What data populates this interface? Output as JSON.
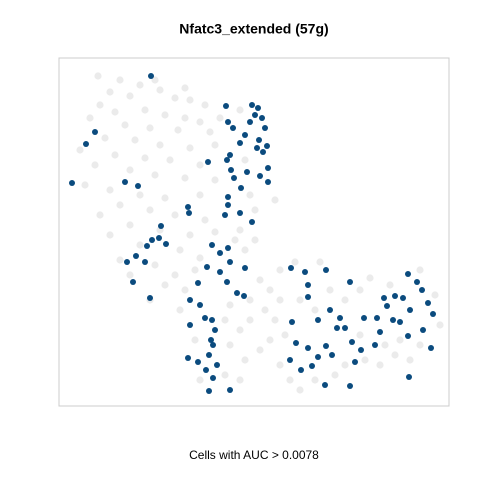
{
  "chart_data": {
    "type": "scatter",
    "title": "Nfatc3_extended (57g)",
    "x_label": "Cells with AUC > 0.0078",
    "xlim": [
      59,
      449
    ],
    "ylim": [
      406,
      58
    ],
    "series": [
      {
        "color": "#e6e6e6",
        "x": [
          98,
          120,
          140,
          110,
          130,
          160,
          175,
          190,
          205,
          100,
          115,
          145,
          165,
          185,
          200,
          90,
          125,
          150,
          178,
          210,
          105,
          135,
          160,
          190,
          215,
          80,
          115,
          145,
          170,
          200,
          95,
          130,
          155,
          185,
          215,
          85,
          110,
          140,
          165,
          200,
          120,
          150,
          175,
          205,
          100,
          130,
          160,
          190,
          215,
          110,
          140,
          180,
          200,
          120,
          155,
          175,
          195,
          240,
          245,
          255,
          235,
          165,
          185,
          230,
          250,
          260,
          270,
          280,
          265,
          250,
          275,
          285,
          240,
          230,
          245,
          260,
          270,
          290,
          280,
          300,
          315,
          335,
          345,
          365,
          380,
          395,
          410,
          420,
          400,
          385,
          360,
          345,
          330,
          360,
          370,
          390,
          420,
          435,
          440,
          300,
          315,
          280,
          295,
          320,
          240,
          225,
          200,
          195,
          225,
          180,
          250,
          255,
          245,
          240,
          220,
          275,
          150,
          130,
          155,
          185
        ],
        "values": [
          76,
          80,
          85,
          92,
          96,
          90,
          98,
          100,
          105,
          105,
          112,
          110,
          115,
          118,
          122,
          118,
          125,
          128,
          130,
          132,
          138,
          140,
          145,
          148,
          145,
          150,
          155,
          158,
          160,
          165,
          165,
          170,
          175,
          178,
          180,
          185,
          190,
          195,
          198,
          195,
          205,
          210,
          215,
          220,
          215,
          225,
          230,
          235,
          232,
          235,
          245,
          250,
          258,
          260,
          265,
          275,
          270,
          230,
          250,
          240,
          240,
          285,
          290,
          305,
          300,
          280,
          290,
          300,
          310,
          320,
          320,
          335,
          330,
          345,
          360,
          350,
          340,
          380,
          365,
          390,
          380,
          375,
          365,
          360,
          365,
          355,
          360,
          345,
          340,
          345,
          335,
          300,
          290,
          290,
          278,
          285,
          270,
          295,
          325,
          300,
          310,
          270,
          262,
          262,
          380,
          375,
          380,
          340,
          320,
          310,
          195,
          210,
          160,
          110,
          118,
          200,
          300,
          275,
          80,
          88
        ]
      },
      {
        "color": "#0b4b7e",
        "x": [
          151,
          226,
          252,
          258,
          255,
          262,
          250,
          265,
          228,
          233,
          95,
          245,
          259,
          267,
          257,
          263,
          86,
          240,
          230,
          227,
          208,
          231,
          268,
          268,
          247,
          260,
          234,
          241,
          228,
          228,
          72,
          125,
          138,
          188,
          189,
          252,
          161,
          159,
          166,
          152,
          147,
          136,
          145,
          127,
          133,
          150,
          212,
          228,
          220,
          230,
          207,
          245,
          220,
          198,
          227,
          237,
          244,
          291,
          305,
          326,
          308,
          308,
          350,
          408,
          417,
          422,
          403,
          395,
          384,
          387,
          410,
          428,
          433,
          377,
          364,
          393,
          400,
          380,
          408,
          375,
          361,
          352,
          345,
          337,
          340,
          330,
          318,
          296,
          308,
          326,
          332,
          318,
          301,
          312,
          325,
          355,
          350,
          409,
          431,
          423,
          292,
          290,
          205,
          212,
          190,
          211,
          209,
          217,
          213,
          188,
          198,
          209,
          230,
          215,
          213,
          206,
          190,
          200,
          240,
          225
        ],
        "values": [
          76,
          106,
          105,
          108,
          115,
          118,
          122,
          128,
          122,
          128,
          132,
          135,
          140,
          146,
          148,
          152,
          144,
          143,
          155,
          160,
          162,
          170,
          168,
          182,
          172,
          176,
          178,
          188,
          197,
          205,
          183,
          182,
          186,
          207,
          213,
          222,
          226,
          238,
          244,
          240,
          246,
          256,
          262,
          262,
          282,
          298,
          245,
          248,
          253,
          262,
          267,
          268,
          272,
          283,
          282,
          293,
          296,
          268,
          272,
          270,
          285,
          297,
          282,
          274,
          282,
          290,
          298,
          296,
          298,
          306,
          310,
          303,
          314,
          318,
          318,
          320,
          322,
          332,
          336,
          345,
          350,
          342,
          328,
          328,
          318,
          310,
          320,
          343,
          348,
          346,
          355,
          357,
          370,
          366,
          385,
          362,
          386,
          377,
          348,
          330,
          322,
          360,
          318,
          320,
          325,
          340,
          355,
          365,
          378,
          358,
          362,
          391,
          390,
          330,
          345,
          370,
          300,
          305,
          213,
          215
        ]
      }
    ]
  }
}
